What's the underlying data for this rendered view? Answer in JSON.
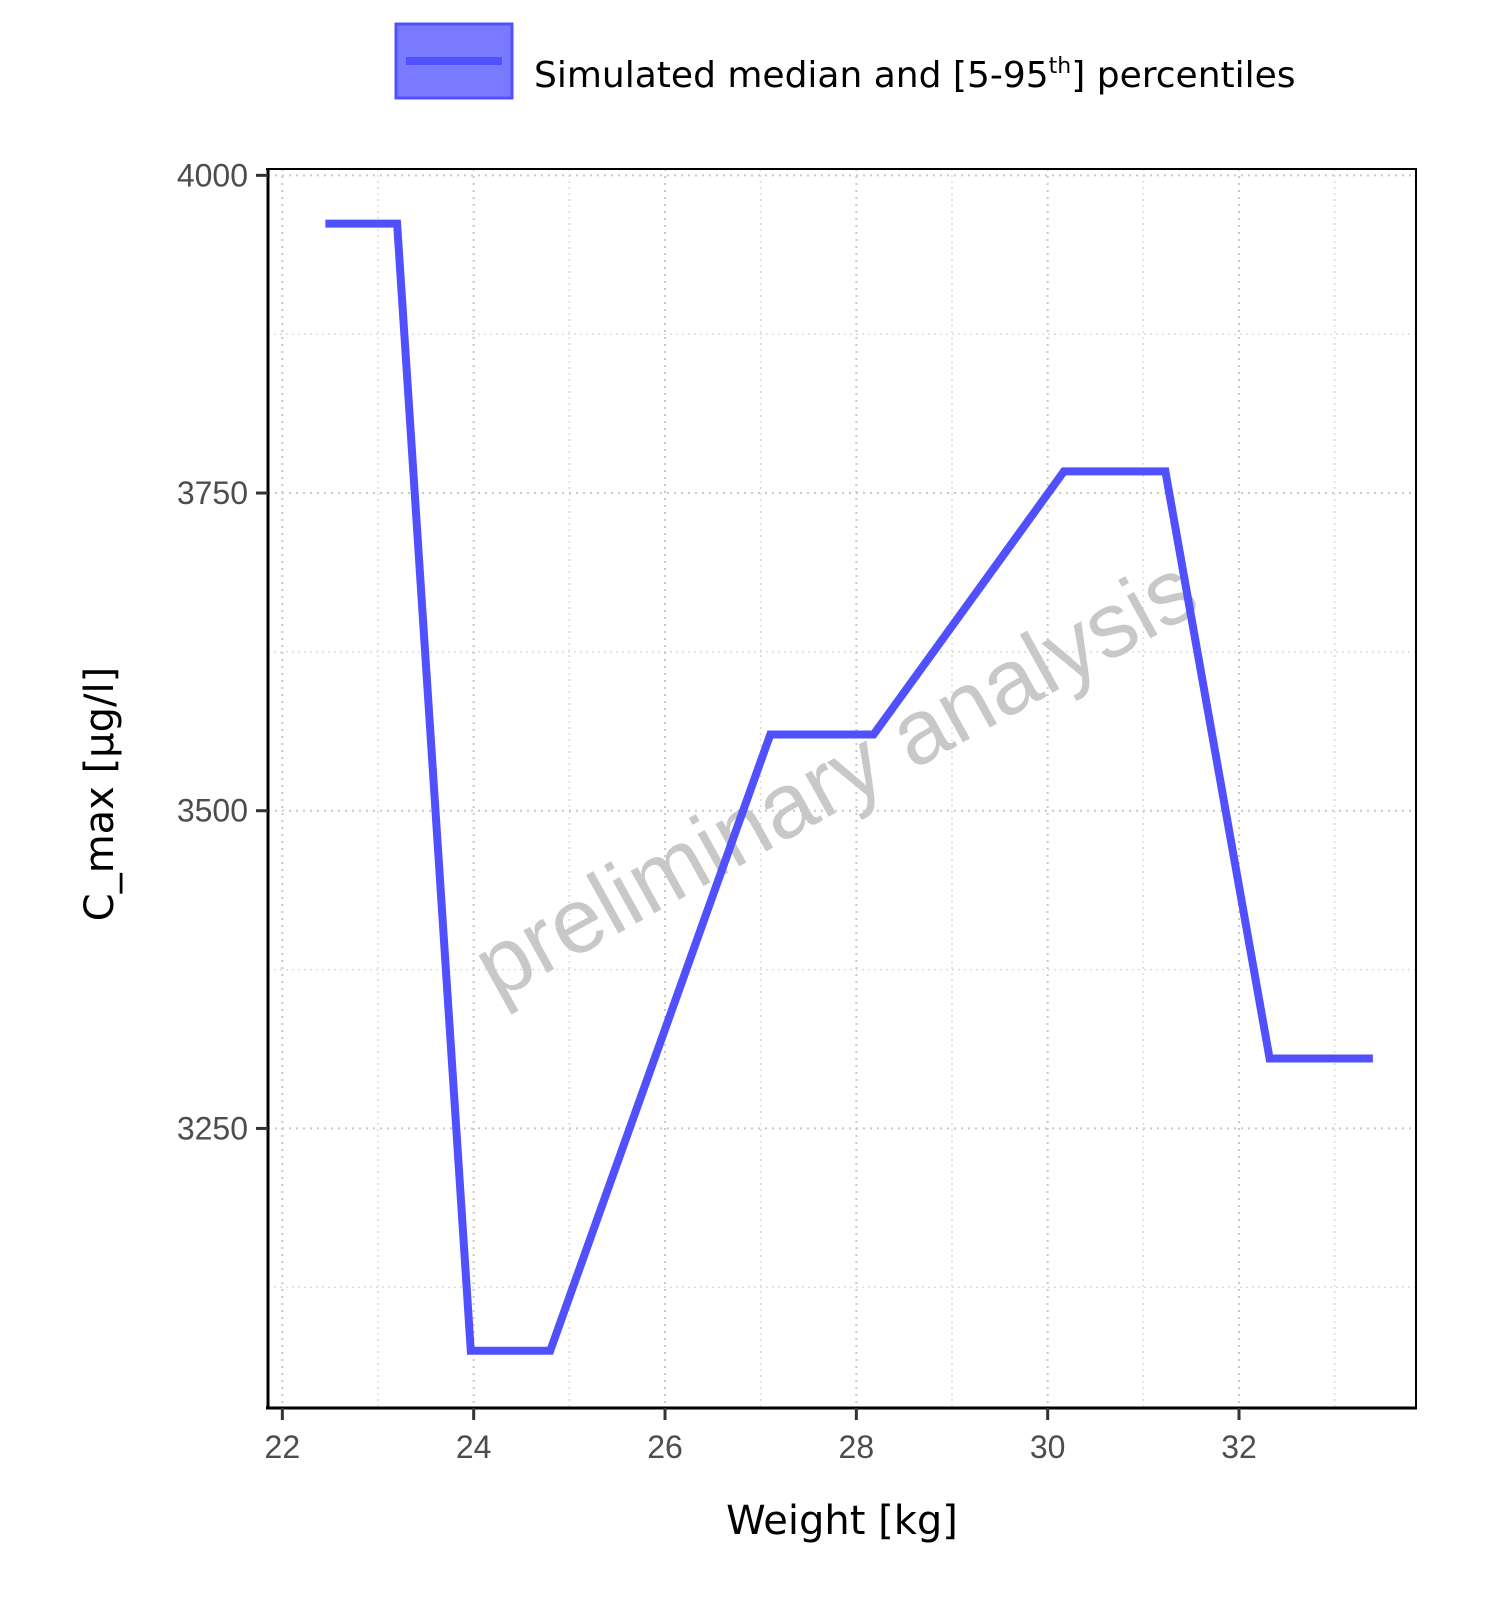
{
  "chart_data": {
    "type": "line",
    "title": "",
    "xlabel": "Weight [kg]",
    "ylabel": "C_max [µg/l]",
    "xlim": [
      21.85,
      33.85
    ],
    "ylim": [
      3030,
      4005
    ],
    "x_ticks": [
      22,
      24,
      26,
      28,
      30,
      32
    ],
    "x_tick_labels": [
      "22",
      "24",
      "26",
      "28",
      "30",
      "32"
    ],
    "y_ticks": [
      3250,
      3500,
      3750,
      4000
    ],
    "y_tick_labels": [
      "3250",
      "3500",
      "3750",
      "4000"
    ],
    "y_minor_ticks": [
      3125,
      3375,
      3625,
      3875
    ],
    "x_minor_ticks": [
      23,
      25,
      27,
      29,
      31,
      33
    ],
    "grid": true,
    "legend_position": "top",
    "series": [
      {
        "name": "Simulated median and [5-95th] percentiles",
        "color": "#5050ff",
        "x": [
          22.45,
          23.2,
          23.97,
          24.8,
          27.1,
          28.18,
          30.17,
          31.23,
          32.32,
          33.4
        ],
        "y": [
          3962,
          3962,
          3075,
          3075,
          3560,
          3560,
          3767,
          3767,
          3305,
          3305
        ]
      }
    ],
    "legend": {
      "label_main": "Simulated median and [5-95",
      "label_sup": "th",
      "label_end": "] percentiles",
      "swatch_fill": "#7a7aff",
      "swatch_line": "#5050ff"
    },
    "watermark": "preliminary analysis"
  }
}
